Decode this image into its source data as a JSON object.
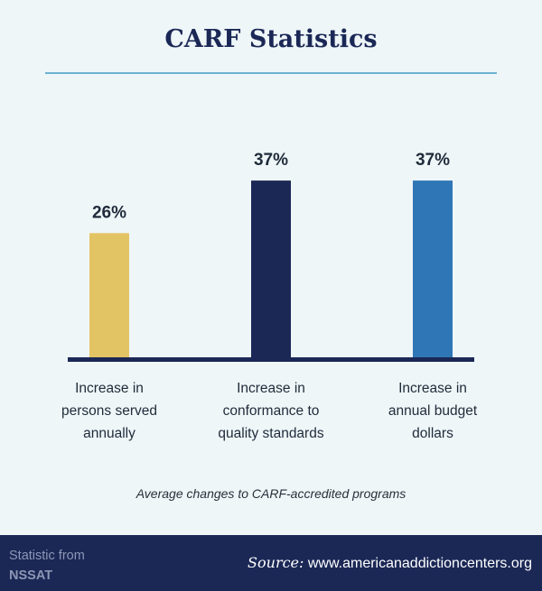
{
  "chart_data": {
    "type": "bar",
    "title": "CARF Statistics",
    "categories": [
      [
        "Increase in",
        "persons served",
        "annually"
      ],
      [
        "Increase in",
        "conformance to",
        "quality standards"
      ],
      [
        "Increase in",
        "annual budget",
        "dollars"
      ]
    ],
    "values": [
      26,
      37,
      37
    ],
    "value_labels": [
      "26%",
      "37%",
      "37%"
    ],
    "colors": [
      "#e3c465",
      "#1b2856",
      "#2e76b5"
    ],
    "ylim": [
      0,
      51
    ],
    "xlabel": "",
    "ylabel": "",
    "caption": "Average changes to CARF-accredited programs"
  },
  "footer": {
    "stat_line1": "Statistic from",
    "stat_line2": "NSSAT",
    "source_label": "Source:",
    "source_url": "www.americanaddictioncenters.org"
  }
}
